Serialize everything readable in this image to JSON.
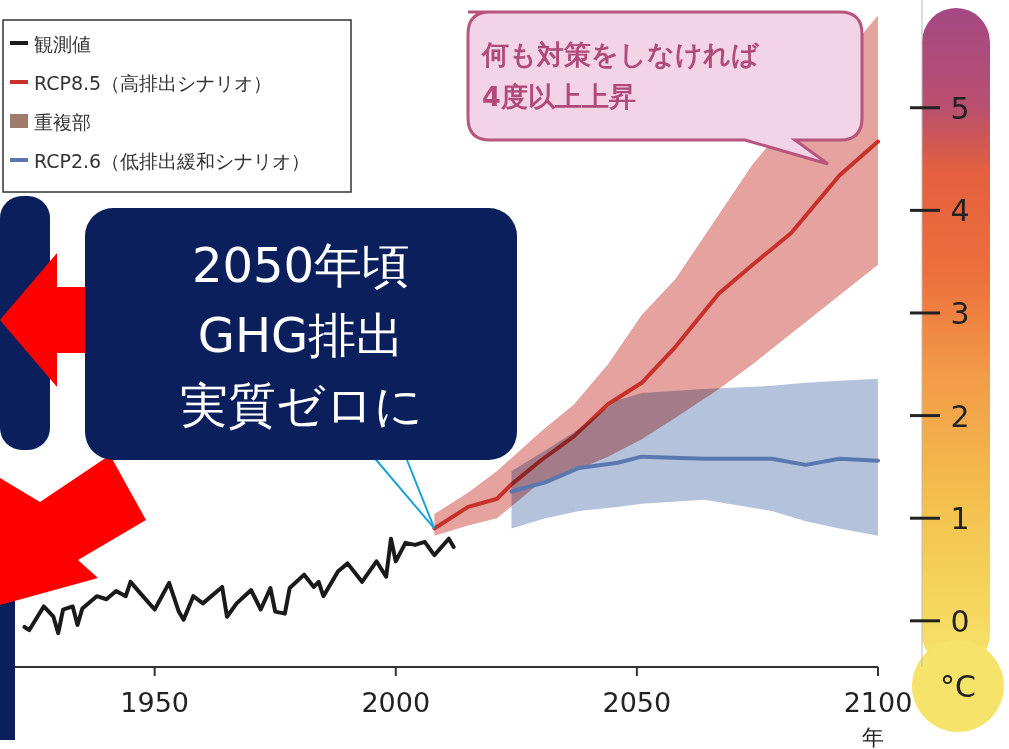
{
  "chart_data": {
    "type": "line",
    "xlabel": "年",
    "ylabel": "°C",
    "xlim": [
      1920,
      2100
    ],
    "xticks": [
      1950,
      2000,
      2050,
      2100
    ],
    "ylim": [
      -0.45,
      6.05
    ],
    "yticks": [
      0,
      1,
      2,
      3,
      4,
      5
    ],
    "legend": "top left",
    "series": [
      {
        "name": "観測値",
        "color": "#1a1a1a",
        "x": [
          1923,
          1924,
          1927,
          1929,
          1930,
          1931,
          1933,
          1934,
          1935,
          1938,
          1940,
          1942,
          1944,
          1945,
          1947,
          1950,
          1953,
          1955,
          1956,
          1958,
          1960,
          1964,
          1965,
          1967,
          1970,
          1972,
          1974,
          1975,
          1977,
          1978,
          1981,
          1983,
          1984,
          1985,
          1987,
          1988,
          1990,
          1993,
          1996,
          1998,
          1999,
          2000,
          2002,
          2004,
          2006,
          2008,
          2011,
          2012
        ],
        "values": [
          -0.06,
          -0.09,
          0.14,
          0.04,
          -0.12,
          0.11,
          0.14,
          -0.04,
          0.12,
          0.24,
          0.21,
          0.29,
          0.24,
          0.38,
          0.27,
          0.11,
          0.37,
          0.09,
          0.01,
          0.24,
          0.17,
          0.33,
          0.04,
          0.17,
          0.3,
          0.11,
          0.32,
          0.09,
          0.07,
          0.32,
          0.45,
          0.33,
          0.38,
          0.24,
          0.4,
          0.48,
          0.56,
          0.38,
          0.58,
          0.43,
          0.8,
          0.58,
          0.76,
          0.74,
          0.77,
          0.64,
          0.8,
          0.72
        ]
      },
      {
        "name": "RCP8.5（高排出シナリオ）",
        "color": "#c8302a",
        "x": [
          2008,
          2015,
          2021,
          2024,
          2030,
          2037,
          2044,
          2051,
          2058,
          2067,
          2074,
          2082,
          2092,
          2100
        ],
        "values": [
          0.9,
          1.11,
          1.19,
          1.33,
          1.56,
          1.8,
          2.11,
          2.32,
          2.67,
          3.19,
          3.47,
          3.78,
          4.34,
          4.67
        ],
        "lower": [
          0.83,
          0.93,
          1.0,
          null,
          1.35,
          1.46,
          1.6,
          1.77,
          1.98,
          2.26,
          2.5,
          null,
          null,
          3.47
        ],
        "upper": [
          1.04,
          1.25,
          1.46,
          null,
          1.84,
          2.11,
          2.5,
          2.98,
          3.33,
          3.96,
          4.45,
          null,
          null,
          5.9
        ]
      },
      {
        "name": "RCP2.6（低排出緩和シナリオ）",
        "color": "#5a78b0",
        "x": [
          2024,
          2031,
          2038,
          2046,
          2051,
          2064,
          2078,
          2085,
          2092,
          2100
        ],
        "values": [
          1.26,
          1.35,
          1.49,
          1.54,
          1.6,
          1.58,
          1.58,
          1.52,
          1.58,
          1.56
        ],
        "lower": [
          0.9,
          1.0,
          1.07,
          1.11,
          1.14,
          1.18,
          1.07,
          0.97,
          0.9,
          0.83
        ],
        "upper": [
          1.46,
          1.66,
          1.87,
          2.15,
          2.22,
          2.26,
          2.29,
          2.32,
          2.34,
          2.36
        ]
      }
    ],
    "annotations": [
      "重複部",
      "何も対策をしなければ\n4度以上上昇",
      {
        "text": "2050年頃GHG排出実質ゼロに",
        "x": 2008,
        "y": 0.9
      }
    ]
  }
}
